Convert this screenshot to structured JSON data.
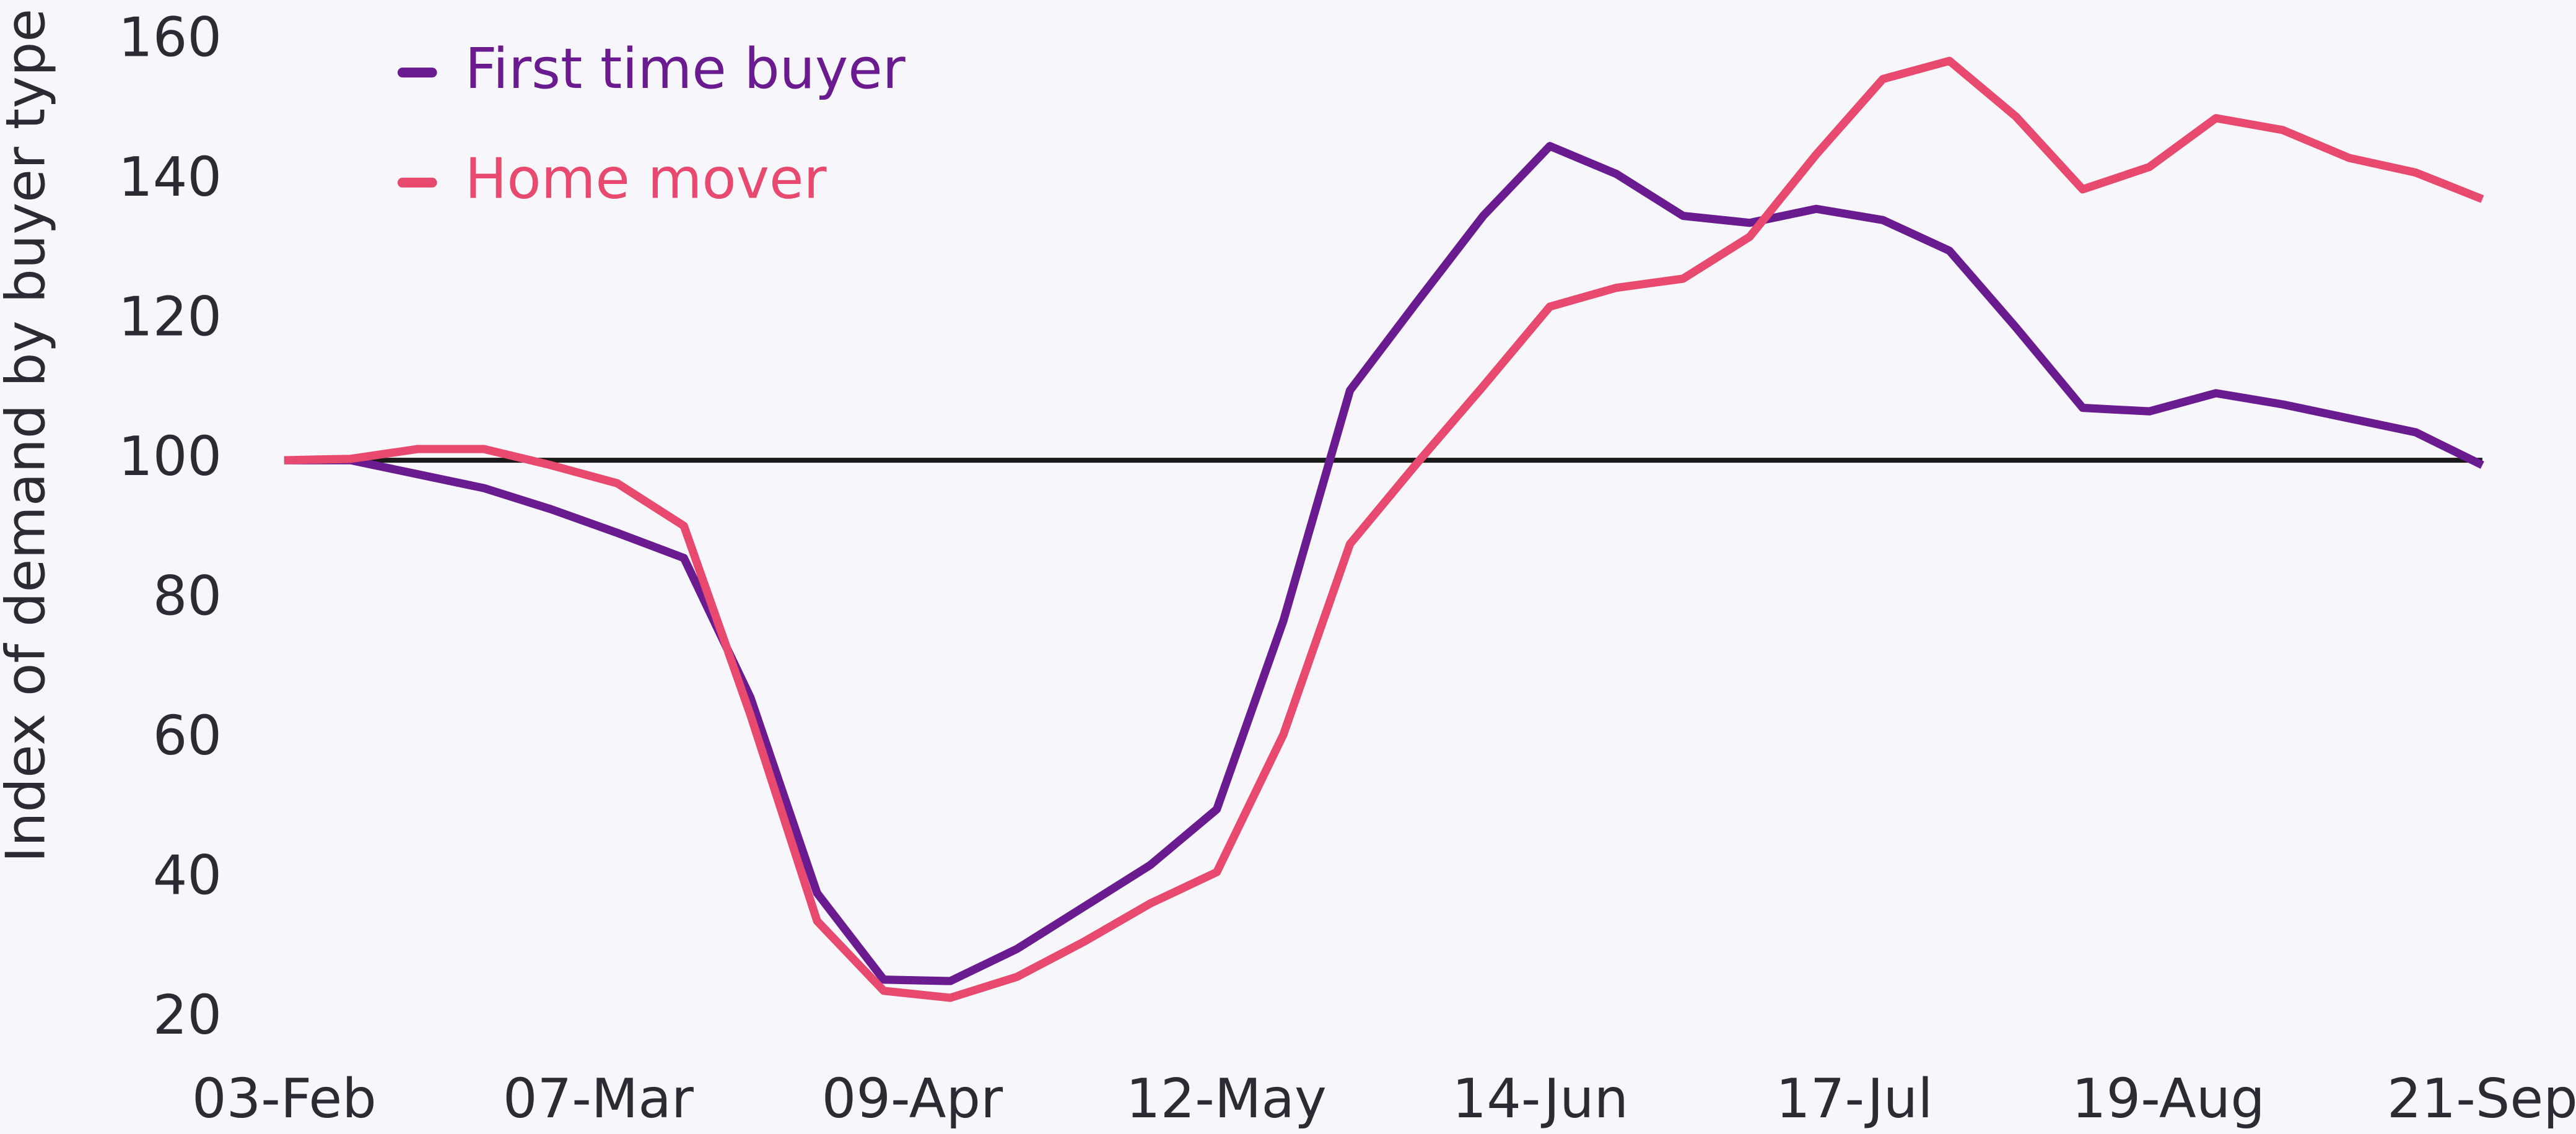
{
  "chart_data": {
    "type": "line",
    "ylabel": "Index of demand by buyer type",
    "x": [
      0,
      7,
      14,
      21,
      28,
      35,
      42,
      49,
      56,
      63,
      70,
      77,
      84,
      91,
      98,
      105,
      112,
      119,
      126,
      133,
      140,
      147,
      154,
      161,
      168,
      175,
      182,
      189,
      196,
      203,
      210,
      217,
      224,
      231
    ],
    "xlim": [
      0,
      231
    ],
    "xticks": [
      {
        "value": 0,
        "label": "03-Feb"
      },
      {
        "value": 33,
        "label": "07-Mar"
      },
      {
        "value": 66,
        "label": "09-Apr"
      },
      {
        "value": 99,
        "label": "12-May"
      },
      {
        "value": 132,
        "label": "14-Jun"
      },
      {
        "value": 165,
        "label": "17-Jul"
      },
      {
        "value": 198,
        "label": "19-Aug"
      },
      {
        "value": 231,
        "label": "21-Sep"
      }
    ],
    "ylim": [
      20,
      160
    ],
    "yticks": [
      20,
      40,
      60,
      80,
      100,
      120,
      140,
      160
    ],
    "reference_line": {
      "value": 100,
      "color": "#1a1a1a"
    },
    "legend": "upper left",
    "series": [
      {
        "name": "First time buyer",
        "color": "#6a1b8f",
        "values": [
          100,
          100,
          98,
          96,
          93,
          89.6,
          86,
          66,
          38,
          25.6,
          25.4,
          30,
          36,
          42,
          50,
          77,
          110,
          122.6,
          135,
          145,
          141,
          135,
          134,
          136,
          134.4,
          130,
          119,
          107.5,
          107,
          109.6,
          108,
          106,
          104,
          99.3
        ]
      },
      {
        "name": "Home mover",
        "color": "#e8496e",
        "values": [
          100,
          100.2,
          101.6,
          101.6,
          99.3,
          96.7,
          90.6,
          63.5,
          34,
          24,
          23,
          26,
          31,
          36.5,
          41,
          60.7,
          88,
          99.5,
          110.6,
          122,
          124.7,
          126,
          132,
          143.8,
          154.6,
          157.2,
          149.2,
          138.8,
          142,
          149,
          147.3,
          143.3,
          141.2,
          137.4
        ]
      }
    ]
  }
}
